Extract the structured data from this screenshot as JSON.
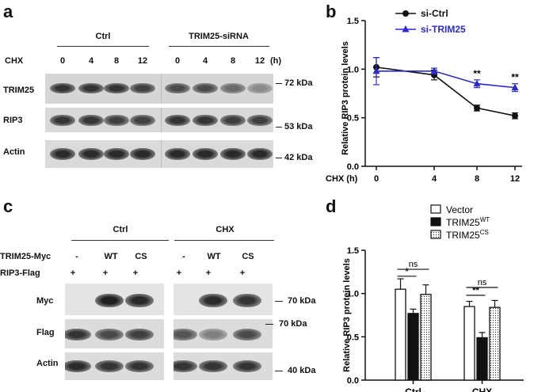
{
  "panel_a": {
    "letter": "a",
    "groups": [
      "Ctrl",
      "TRIM25-siRNA"
    ],
    "chx_label": "CHX",
    "times": [
      "0",
      "4",
      "8",
      "12",
      "0",
      "4",
      "8",
      "12"
    ],
    "unit": "(h)",
    "rows": [
      {
        "label": "TRIM25",
        "kda": "72 kDa",
        "intensity": [
          0.85,
          0.85,
          0.85,
          0.8,
          0.75,
          0.75,
          0.6,
          0.45
        ]
      },
      {
        "label": "RIP3",
        "kda": "53 kDa",
        "intensity": [
          0.85,
          0.85,
          0.8,
          0.8,
          0.85,
          0.85,
          0.8,
          0.8
        ]
      },
      {
        "label": "Actin",
        "kda": "42 kDa",
        "intensity": [
          0.9,
          0.9,
          0.9,
          0.9,
          0.9,
          0.9,
          0.9,
          0.9
        ]
      }
    ]
  },
  "panel_c": {
    "letter": "c",
    "groups": [
      "Ctrl",
      "CHX"
    ],
    "trim_label": "TRIM25-Myc",
    "trim_values": [
      "-",
      "WT",
      "CS",
      "-",
      "WT",
      "CS"
    ],
    "rip_label": "RIP3-Flag",
    "rip_values": [
      "+",
      "+",
      "+",
      "+",
      "+",
      "+"
    ],
    "rows": [
      {
        "label": "Myc",
        "kda": "70 kDa",
        "intensity": [
          0.0,
          0.95,
          0.9,
          0.0,
          0.9,
          0.85
        ]
      },
      {
        "label": "Flag",
        "kda": "70 kDa",
        "intensity": [
          0.85,
          0.75,
          0.8,
          0.7,
          0.5,
          0.75
        ]
      },
      {
        "label": "Actin",
        "kda": "40 kDa",
        "intensity": [
          0.9,
          0.85,
          0.85,
          0.85,
          0.85,
          0.85
        ]
      }
    ]
  },
  "chart_data": [
    {
      "panel": "b",
      "type": "line",
      "ylabel": "Relative RIP3 protein levels",
      "xlabel": "CHX (h)",
      "x": [
        0,
        4,
        8,
        12
      ],
      "ylim": [
        0,
        1.5
      ],
      "yticks": [
        "0.0",
        "0.5",
        "1.0",
        "1.5"
      ],
      "series": [
        {
          "name": "si-Ctrl",
          "color": "#111111",
          "marker": "circle",
          "values": [
            1.02,
            0.94,
            0.6,
            0.52
          ],
          "errors": [
            0.1,
            0.05,
            0.03,
            0.03
          ]
        },
        {
          "name": "si-TRIM25",
          "color": "#2b2bc8",
          "marker": "triangle",
          "values": [
            0.98,
            0.98,
            0.85,
            0.81
          ],
          "errors": [
            0.14,
            0.03,
            0.04,
            0.04
          ]
        }
      ],
      "annotations": [
        {
          "x": 8,
          "text": "**"
        },
        {
          "x": 12,
          "text": "**"
        }
      ]
    },
    {
      "panel": "d",
      "type": "bar",
      "ylabel": "Relative RIP3 protein levels",
      "categories": [
        "Ctrl",
        "CHX"
      ],
      "ylim": [
        0,
        1.5
      ],
      "yticks": [
        "0.0",
        "0.5",
        "1.0",
        "1.5"
      ],
      "series": [
        {
          "name": "Vector",
          "pattern": "white",
          "values": [
            1.05,
            0.85
          ],
          "errors": [
            0.12,
            0.06
          ]
        },
        {
          "name": "TRIM25",
          "sup": "WT",
          "pattern": "black",
          "values": [
            0.77,
            0.49
          ],
          "errors": [
            0.05,
            0.06
          ]
        },
        {
          "name": "TRIM25",
          "sup": "CS",
          "pattern": "dotted",
          "values": [
            0.99,
            0.84
          ],
          "errors": [
            0.11,
            0.08
          ]
        }
      ],
      "significance": [
        {
          "category": 0,
          "from": 0,
          "to": 1,
          "text": "*",
          "level": 1.2
        },
        {
          "category": 0,
          "from": 0,
          "to": 2,
          "text": "ns",
          "level": 1.28
        },
        {
          "category": 1,
          "from": 0,
          "to": 1,
          "text": "**",
          "level": 0.98
        },
        {
          "category": 1,
          "from": 0,
          "to": 2,
          "text": "ns",
          "level": 1.07
        }
      ]
    }
  ]
}
